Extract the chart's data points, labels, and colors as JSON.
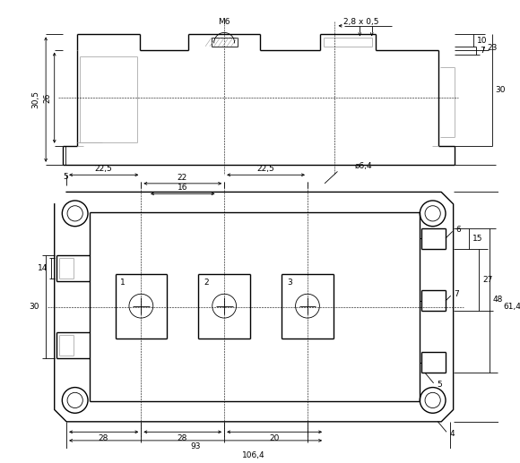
{
  "bg_color": "#ffffff",
  "line_color": "#000000",
  "gray_color": "#aaaaaa",
  "fig_width": 5.8,
  "fig_height": 5.17,
  "dpi": 100,
  "lw_main": 1.0,
  "lw_thin": 0.6,
  "lw_dim": 0.6,
  "fs": 6.5
}
